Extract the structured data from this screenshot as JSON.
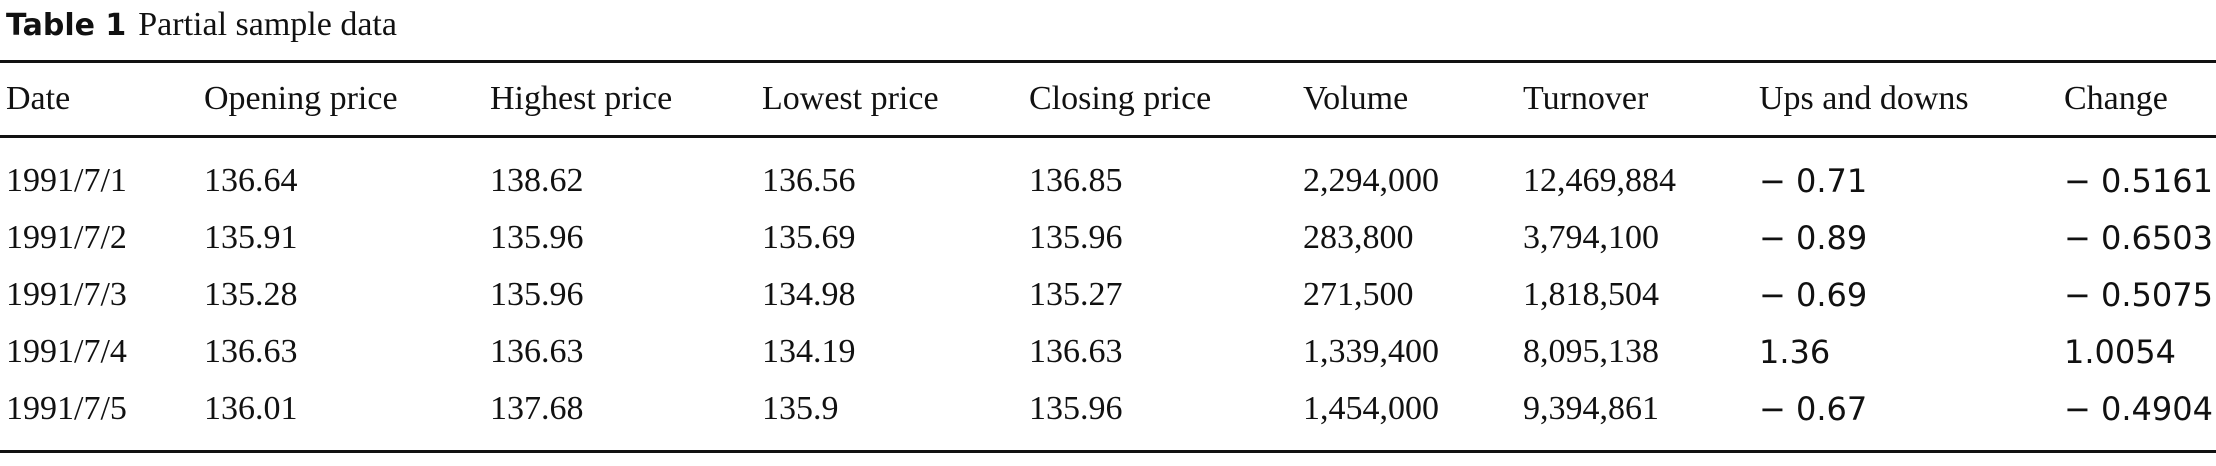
{
  "caption": {
    "label": "Table 1",
    "title": "Partial sample data"
  },
  "table": {
    "headers": [
      "Date",
      "Opening price",
      "Highest price",
      "Lowest price",
      "Closing price",
      "Volume",
      "Turnover",
      "Ups and downs",
      "Change"
    ],
    "rows": [
      [
        "1991/7/1",
        "136.64",
        "138.62",
        "136.56",
        "136.85",
        "2,294,000",
        "12,469,884",
        "− 0.71",
        "− 0.5161"
      ],
      [
        "1991/7/2",
        "135.91",
        "135.96",
        "135.69",
        "135.96",
        "283,800",
        "3,794,100",
        "− 0.89",
        "− 0.6503"
      ],
      [
        "1991/7/3",
        "135.28",
        "135.96",
        "134.98",
        "135.27",
        "271,500",
        "1,818,504",
        "− 0.69",
        "− 0.5075"
      ],
      [
        "1991/7/4",
        "136.63",
        "136.63",
        "134.19",
        "136.63",
        "1,339,400",
        "8,095,138",
        "1.36",
        "1.0054"
      ],
      [
        "1991/7/5",
        "136.01",
        "137.68",
        "135.9",
        "135.96",
        "1,454,000",
        "9,394,861",
        "− 0.67",
        "− 0.4904"
      ]
    ]
  }
}
